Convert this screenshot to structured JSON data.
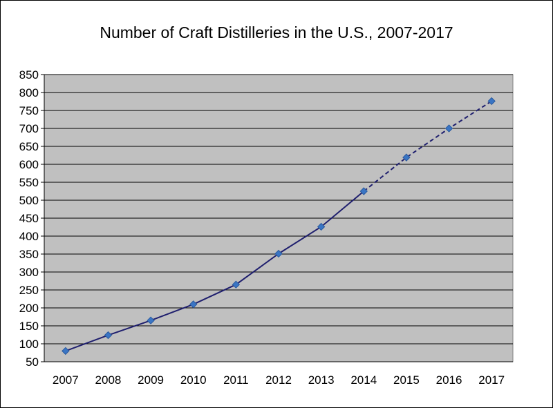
{
  "chart_data": {
    "type": "line",
    "title": "Number of Craft Distilleries in the U.S., 2007-2017",
    "xlabel": "",
    "ylabel": "",
    "categories": [
      "2007",
      "2008",
      "2009",
      "2010",
      "2011",
      "2012",
      "2013",
      "2014",
      "2015",
      "2016",
      "2017"
    ],
    "series": [
      {
        "values": [
          80,
          124,
          165,
          210,
          265,
          351,
          426,
          525,
          619,
          700,
          776
        ],
        "solid_through_index": 7,
        "dashed_from_index": 7
      }
    ],
    "ylim": [
      50,
      850
    ],
    "yticks": [
      50,
      100,
      150,
      200,
      250,
      300,
      350,
      400,
      450,
      500,
      550,
      600,
      650,
      700,
      750,
      800,
      850
    ],
    "grid": "horizontal",
    "legend": "none",
    "colors": {
      "plot_background": "#c0c0c0",
      "gridline": "#000000",
      "line": "#1f1f6e",
      "marker": "#3a75c4",
      "marker_edge": "#2a5a9e"
    }
  }
}
